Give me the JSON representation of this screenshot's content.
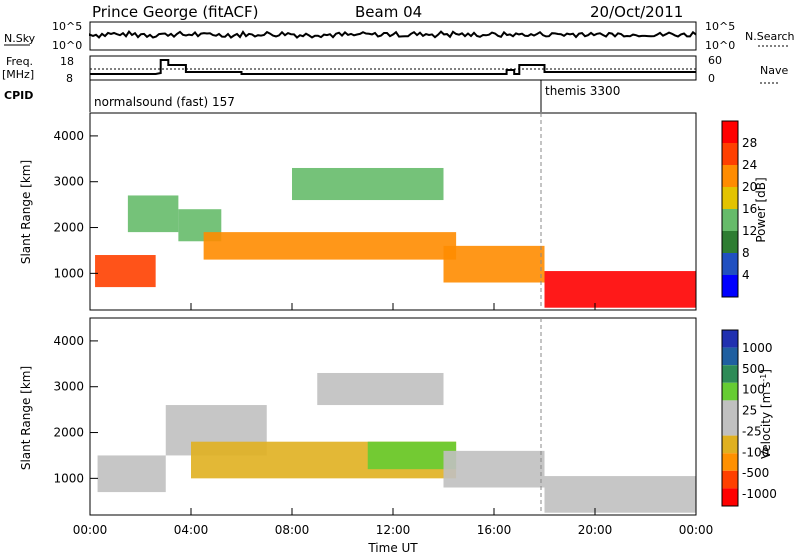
{
  "header": {
    "station": "Prince George (fitACF)",
    "beam": "Beam 04",
    "date": "20/Oct/2011"
  },
  "left_labels": {
    "nsky": "N.Sky",
    "freq_top": "Freq.",
    "freq_unit": "[MHz]",
    "cpid": "CPID"
  },
  "right_labels": {
    "nsearch": "N.Search",
    "nave": "Nave"
  },
  "strip_ticks": {
    "nsky_left": [
      "10^5",
      "10^0"
    ],
    "nsky_right": [
      "10^5",
      "10^0"
    ],
    "freq_left": [
      "18",
      "8"
    ],
    "nave_right": [
      "60",
      "0"
    ]
  },
  "cpid_labels": {
    "first": "normalsound (fast) 157",
    "second": "themis 3300"
  },
  "x_axis": {
    "label": "Time UT",
    "ticks": [
      "00:00",
      "04:00",
      "08:00",
      "12:00",
      "16:00",
      "20:00",
      "00:00"
    ]
  },
  "colors": {
    "power": [
      "#0000ff",
      "#2050c0",
      "#2e7d32",
      "#66bb6a",
      "#e3c300",
      "#ff8c00",
      "#ff4000",
      "#ff0000"
    ],
    "velocity": [
      "#ff0000",
      "#ff4000",
      "#ff9000",
      "#e0b020",
      "#c0c0c0",
      "#c0c0c0",
      "#66cc33",
      "#2e8b57",
      "#1f5fa0",
      "#2030b0"
    ],
    "ground_scatter": "#c0c0c0"
  },
  "chart_data": [
    {
      "type": "heatmap",
      "ylabel": "Slant Range [km]",
      "xlabel": "",
      "ylim": [
        200,
        4500
      ],
      "yticks": [
        "1000",
        "2000",
        "3000",
        "4000"
      ],
      "colorbar": {
        "label": "Power [dB]",
        "ticks": [
          "4",
          "8",
          "12",
          "16",
          "20",
          "24",
          "28"
        ],
        "range": [
          0,
          30
        ]
      },
      "bands": [
        {
          "t0": 0.2,
          "t1": 2.6,
          "r0": 700,
          "r1": 1400,
          "value": 26
        },
        {
          "t0": 1.5,
          "t1": 3.5,
          "r0": 1900,
          "r1": 2700,
          "value": 12
        },
        {
          "t0": 3.5,
          "t1": 5.2,
          "r0": 1700,
          "r1": 2400,
          "value": 12
        },
        {
          "t0": 4.5,
          "t1": 14.5,
          "r0": 1300,
          "r1": 1900,
          "value": 22
        },
        {
          "t0": 8.0,
          "t1": 14.0,
          "r0": 2600,
          "r1": 3300,
          "value": 14
        },
        {
          "t0": 14.0,
          "t1": 18.0,
          "r0": 800,
          "r1": 1600,
          "value": 20
        },
        {
          "t0": 18.0,
          "t1": 24.0,
          "r0": 250,
          "r1": 1050,
          "value": 30
        }
      ]
    },
    {
      "type": "heatmap",
      "ylabel": "Slant Range [km]",
      "xlabel": "Time UT",
      "ylim": [
        200,
        4500
      ],
      "yticks": [
        "1000",
        "2000",
        "3000",
        "4000"
      ],
      "colorbar": {
        "label": "Velocity [m s-1]",
        "ticks": [
          "1000",
          "500",
          "100",
          "25",
          "-25",
          "-100",
          "-500",
          "-1000"
        ],
        "range": [
          -1000,
          1000
        ]
      },
      "bands": [
        {
          "t0": 0.3,
          "t1": 3.0,
          "r0": 700,
          "r1": 1500,
          "value": 0
        },
        {
          "t0": 3.0,
          "t1": 7.0,
          "r0": 1500,
          "r1": 2600,
          "value": 0
        },
        {
          "t0": 4.0,
          "t1": 14.5,
          "r0": 1000,
          "r1": 1800,
          "value": -400
        },
        {
          "t0": 11.0,
          "t1": 14.5,
          "r0": 1200,
          "r1": 1800,
          "value": 300
        },
        {
          "t0": 9.0,
          "t1": 14.0,
          "r0": 2600,
          "r1": 3300,
          "value": 0
        },
        {
          "t0": 14.0,
          "t1": 18.0,
          "r0": 800,
          "r1": 1600,
          "value": 0
        },
        {
          "t0": 18.0,
          "t1": 24.0,
          "r0": 250,
          "r1": 1050,
          "value": 0
        }
      ]
    }
  ]
}
